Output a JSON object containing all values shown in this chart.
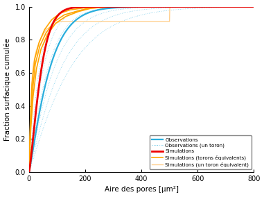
{
  "xlabel": "Aire des pores [μm²]",
  "ylabel": "Fraction surfacique cumulée",
  "xlim": [
    0,
    800
  ],
  "ylim": [
    0,
    1.0
  ],
  "xticks": [
    0,
    200,
    400,
    600,
    800
  ],
  "yticks": [
    0,
    0.2,
    0.4,
    0.6,
    0.8,
    1.0
  ],
  "color_obs": "#29AEDD",
  "color_obs_toron": "#29AEDD",
  "color_sim": "#EE0000",
  "color_sim_torons": "#FFA500",
  "color_sim_un_toron": "#FFD090",
  "bg_color": "#FFFFFF",
  "legend_labels": [
    "Observations",
    "Observations (un toron)",
    "Simulations",
    "Simulations (torons équivalents)",
    "Simulations (un toron équivalent)"
  ],
  "obs_scale": 75,
  "obs_shape": 1.15,
  "sim_scale": 45,
  "sim_shape": 1.3,
  "obs_toron_scales": [
    38,
    52,
    68,
    90,
    115,
    148
  ],
  "obs_toron_shape": 1.1
}
